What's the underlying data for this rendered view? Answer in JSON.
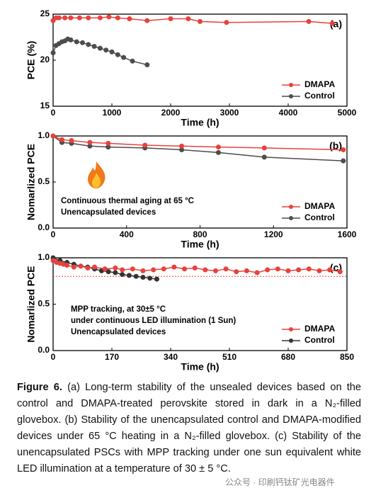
{
  "chart_data": [
    {
      "type": "line",
      "panel_label": "(a)",
      "x_label": "Time (h)",
      "y_label": "PCE (%)",
      "xlim": [
        0,
        5000
      ],
      "xticks": [
        0,
        1000,
        2000,
        3000,
        4000,
        5000
      ],
      "ylim": [
        15,
        25
      ],
      "yticks": [
        15,
        20,
        25
      ],
      "legend": "lower right",
      "series": [
        {
          "name": "DMAPA",
          "color": "#e8413c",
          "x": [
            0,
            50,
            100,
            200,
            300,
            450,
            600,
            800,
            950,
            1100,
            1300,
            1600,
            2000,
            2300,
            2500,
            2950,
            4350,
            4750
          ],
          "values": [
            24.3,
            24.6,
            24.6,
            24.6,
            24.6,
            24.6,
            24.6,
            24.6,
            24.7,
            24.6,
            24.5,
            24.3,
            24.5,
            24.5,
            24.2,
            24.1,
            24.2,
            24.0
          ]
        },
        {
          "name": "Control",
          "color": "#4d4d4d",
          "x": [
            0,
            50,
            100,
            150,
            200,
            250,
            300,
            400,
            500,
            600,
            700,
            800,
            900,
            1000,
            1100,
            1200,
            1350,
            1600
          ],
          "values": [
            20.8,
            21.6,
            21.8,
            22.0,
            22.1,
            22.3,
            22.2,
            22.0,
            21.9,
            21.7,
            21.5,
            21.3,
            21.1,
            20.9,
            20.6,
            20.3,
            19.9,
            19.5
          ]
        }
      ]
    },
    {
      "type": "line",
      "panel_label": "(b)",
      "x_label": "Time (h)",
      "y_label": "Nomarlized PCE",
      "annotations": [
        "Continuous thermal aging at 65 °C",
        "Unencapsulated devices"
      ],
      "xlim": [
        0,
        1600
      ],
      "xticks": [
        0,
        400,
        800,
        1200,
        1600
      ],
      "ylim": [
        0,
        1
      ],
      "yticks": [
        {
          "value": 0,
          "label": "0.0"
        },
        {
          "value": 0.5,
          "label": "0.5"
        },
        {
          "value": 1,
          "label": "1.0"
        }
      ],
      "legend": "lower right",
      "series": [
        {
          "name": "DMAPA",
          "color": "#e8413c",
          "x": [
            0,
            48,
            100,
            200,
            300,
            500,
            700,
            900,
            1150,
            1580
          ],
          "values": [
            1.0,
            0.96,
            0.95,
            0.93,
            0.92,
            0.9,
            0.89,
            0.88,
            0.87,
            0.85
          ]
        },
        {
          "name": "Control",
          "color": "#4d4d4d",
          "x": [
            0,
            48,
            100,
            200,
            300,
            500,
            700,
            900,
            1150,
            1580
          ],
          "values": [
            1.0,
            0.93,
            0.92,
            0.89,
            0.88,
            0.87,
            0.85,
            0.82,
            0.77,
            0.73
          ]
        }
      ]
    },
    {
      "type": "line",
      "panel_label": "(c)",
      "x_label": "Time (h)",
      "y_label": "Nomarlized PCE",
      "annotations": [
        "MPP tracking, at 30±5 °C",
        "under continuous LED illumination (1 Sun)",
        "Unencapsulated devices"
      ],
      "xlim": [
        0,
        850
      ],
      "xticks": [
        0,
        170,
        340,
        510,
        680,
        850
      ],
      "ylim": [
        0,
        1
      ],
      "yticks": [
        {
          "value": 0,
          "label": "0.0"
        },
        {
          "value": 0.5,
          "label": "0.5"
        },
        {
          "value": 1,
          "label": "1.0"
        }
      ],
      "ref_line": 0.8,
      "legend": "lower right",
      "series": [
        {
          "name": "DMAPA",
          "color": "#e8413c",
          "x": [
            0,
            10,
            20,
            30,
            40,
            60,
            80,
            100,
            120,
            150,
            180,
            200,
            230,
            260,
            290,
            320,
            350,
            380,
            410,
            440,
            470,
            500,
            530,
            560,
            590,
            620,
            650,
            680,
            710,
            740,
            770,
            800,
            830
          ],
          "values": [
            0.97,
            0.95,
            0.94,
            0.93,
            0.92,
            0.9,
            0.91,
            0.89,
            0.9,
            0.88,
            0.89,
            0.87,
            0.88,
            0.86,
            0.87,
            0.88,
            0.9,
            0.88,
            0.89,
            0.87,
            0.86,
            0.88,
            0.85,
            0.86,
            0.84,
            0.87,
            0.88,
            0.86,
            0.87,
            0.88,
            0.86,
            0.87,
            0.85
          ]
        },
        {
          "name": "Control",
          "color": "#333333",
          "x": [
            0,
            20,
            40,
            60,
            80,
            100,
            120,
            140,
            160,
            180,
            200,
            220,
            240,
            260,
            280,
            300
          ],
          "values": [
            1.0,
            0.97,
            0.95,
            0.93,
            0.91,
            0.9,
            0.88,
            0.86,
            0.85,
            0.84,
            0.82,
            0.81,
            0.8,
            0.79,
            0.78,
            0.77
          ]
        }
      ]
    }
  ],
  "caption": {
    "label": "Figure 6.",
    "text": "(a) Long-term stability of the unsealed devices based on the control and DMAPA-treated perovskite stored in dark in a N₂-filled glovebox. (b) Stability of the unencapsulated control and DMAPA-modified devices under 65 °C heating in a N₂-filled glovebox. (c) Stability of the unencapsulated PSCs with MPP tracking under one sun equivalent white LED illumination at a temperature of 30 ± 5 °C."
  },
  "watermark": "公众号 · 印刷钙钛矿光电器件"
}
